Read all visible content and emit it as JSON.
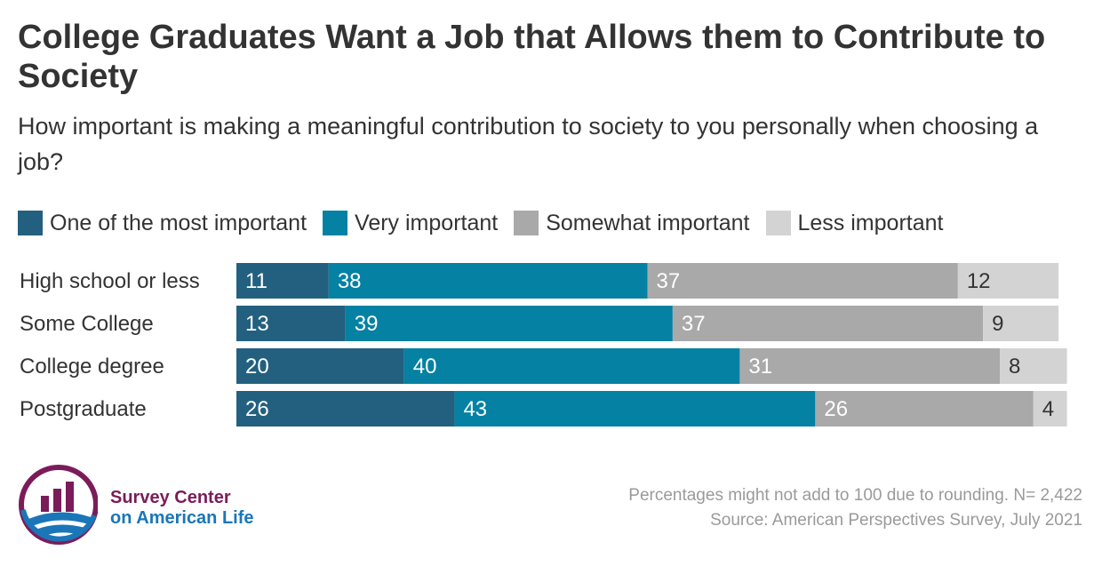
{
  "chart_data": {
    "type": "bar",
    "orientation": "horizontal",
    "stacked": true,
    "title": "College Graduates Want a Job that Allows them to Contribute to Society",
    "subtitle": "How important is making a meaningful contribution to society to you personally when choosing a job?",
    "categories": [
      "High school or less",
      "Some College",
      "College degree",
      "Postgraduate"
    ],
    "series": [
      {
        "name": "One of the most important",
        "color": "#23607f",
        "label_color": "#ffffff",
        "values": [
          11,
          13,
          20,
          26
        ]
      },
      {
        "name": "Very important",
        "color": "#0481a3",
        "label_color": "#ffffff",
        "values": [
          38,
          39,
          40,
          43
        ]
      },
      {
        "name": "Somewhat important",
        "color": "#a9a9a9",
        "label_color": "#ffffff",
        "values": [
          37,
          37,
          31,
          26
        ]
      },
      {
        "name": "Less important",
        "color": "#d3d3d3",
        "label_color": "#333333",
        "values": [
          12,
          9,
          8,
          4
        ]
      }
    ],
    "xlim": [
      0,
      100
    ],
    "grid": false,
    "legend_position": "top-left"
  },
  "footnote": {
    "line1": "Percentages might not add to 100 due to rounding. N= 2,422",
    "line2": "Source: American Perspectives Survey, July 2021"
  },
  "logo": {
    "line1": "Survey Center",
    "line2": "on American Life",
    "colors": {
      "primary": "#7b1c5a",
      "secondary": "#1a76b8"
    }
  }
}
